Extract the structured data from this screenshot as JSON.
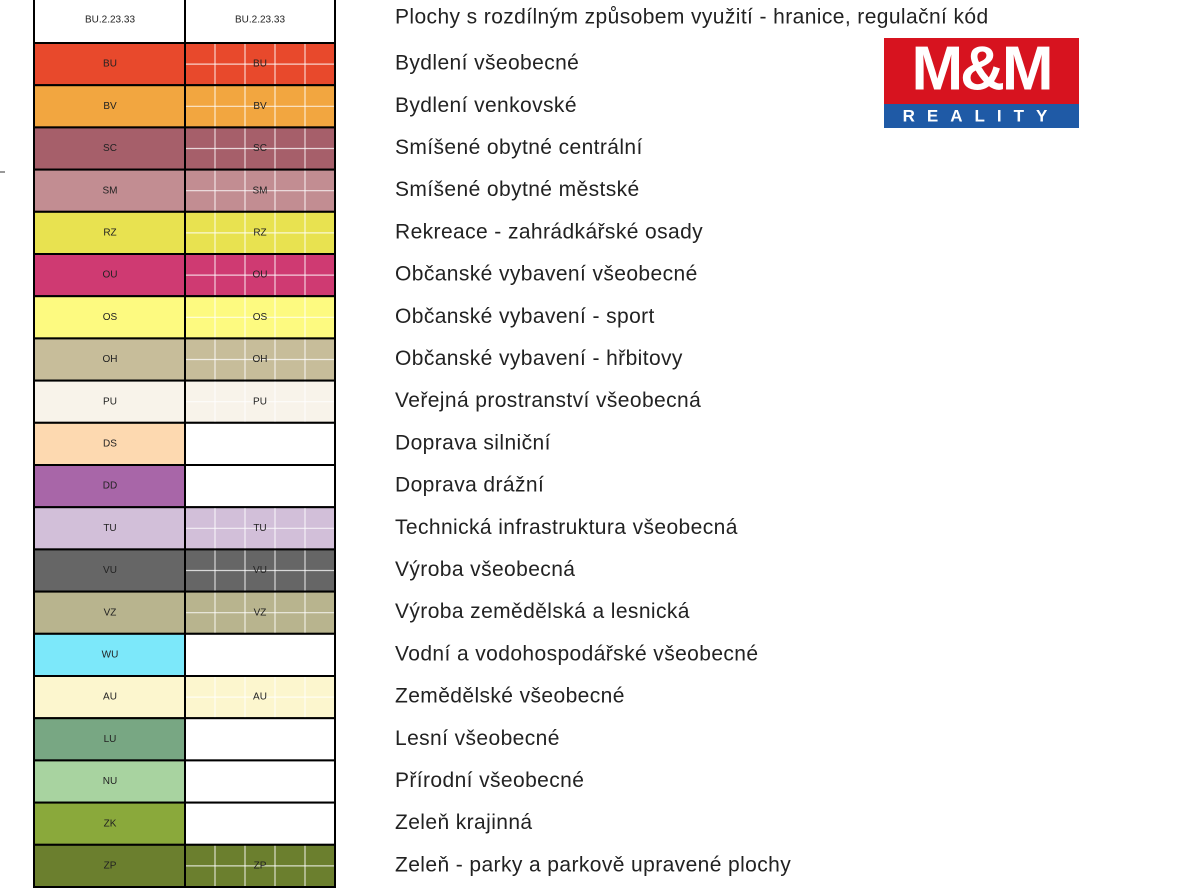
{
  "header": {
    "code_left": "BU.2.23.33",
    "code_right": "BU.2.23.33",
    "label": "Plochy s rozdílným způsobem využití - hranice, regulační kód"
  },
  "logo": {
    "title": "M&M",
    "subtitle": "REALITY"
  },
  "rows": [
    {
      "code": "BU",
      "color": "#e8492c",
      "hatched": true,
      "label": "Bydlení všeobecné"
    },
    {
      "code": "BV",
      "color": "#f2a640",
      "hatched": true,
      "label": "Bydlení venkovské"
    },
    {
      "code": "SC",
      "color": "#a65f6a",
      "hatched": true,
      "label": "Smíšené obytné centrální"
    },
    {
      "code": "SM",
      "color": "#c28d92",
      "hatched": true,
      "label": "Smíšené obytné městské"
    },
    {
      "code": "RZ",
      "color": "#e8e250",
      "hatched": true,
      "label": "Rekreace - zahrádkářské osady"
    },
    {
      "code": "OU",
      "color": "#cf3a72",
      "hatched": true,
      "label": "Občanské vybavení všeobecné"
    },
    {
      "code": "OS",
      "color": "#fdfa80",
      "hatched": true,
      "label": "Občanské vybavení - sport"
    },
    {
      "code": "OH",
      "color": "#c7bd9a",
      "hatched": true,
      "label": "Občanské vybavení - hřbitovy"
    },
    {
      "code": "PU",
      "color": "#f8f3ea",
      "hatched": true,
      "label": "Veřejná prostranství všeobecná"
    },
    {
      "code": "DS",
      "color": "#fdd9b0",
      "hatched": false,
      "label": "Doprava silniční"
    },
    {
      "code": "DD",
      "color": "#a866a8",
      "hatched": false,
      "label": "Doprava drážní"
    },
    {
      "code": "TU",
      "color": "#d2bfd9",
      "hatched": true,
      "label": "Technická infrastruktura všeobecná"
    },
    {
      "code": "VU",
      "color": "#666666",
      "hatched": true,
      "label": "Výroba všeobecná"
    },
    {
      "code": "VZ",
      "color": "#b8b48e",
      "hatched": true,
      "label": "Výroba zemědělská a lesnická"
    },
    {
      "code": "WU",
      "color": "#7ce8fa",
      "hatched": false,
      "label": "Vodní a vodohospodářské všeobecné"
    },
    {
      "code": "AU",
      "color": "#fcf6ce",
      "hatched": true,
      "label": "Zemědělské všeobecné"
    },
    {
      "code": "LU",
      "color": "#78a783",
      "hatched": false,
      "label": "Lesní všeobecné"
    },
    {
      "code": "NU",
      "color": "#a8d3a0",
      "hatched": false,
      "label": "Přírodní všeobecné"
    },
    {
      "code": "ZK",
      "color": "#8aa93b",
      "hatched": false,
      "label": "Zeleň krajinná"
    },
    {
      "code": "ZP",
      "color": "#6b7f2e",
      "hatched": true,
      "label": "Zeleň - parky a parkově upravené plochy"
    }
  ]
}
